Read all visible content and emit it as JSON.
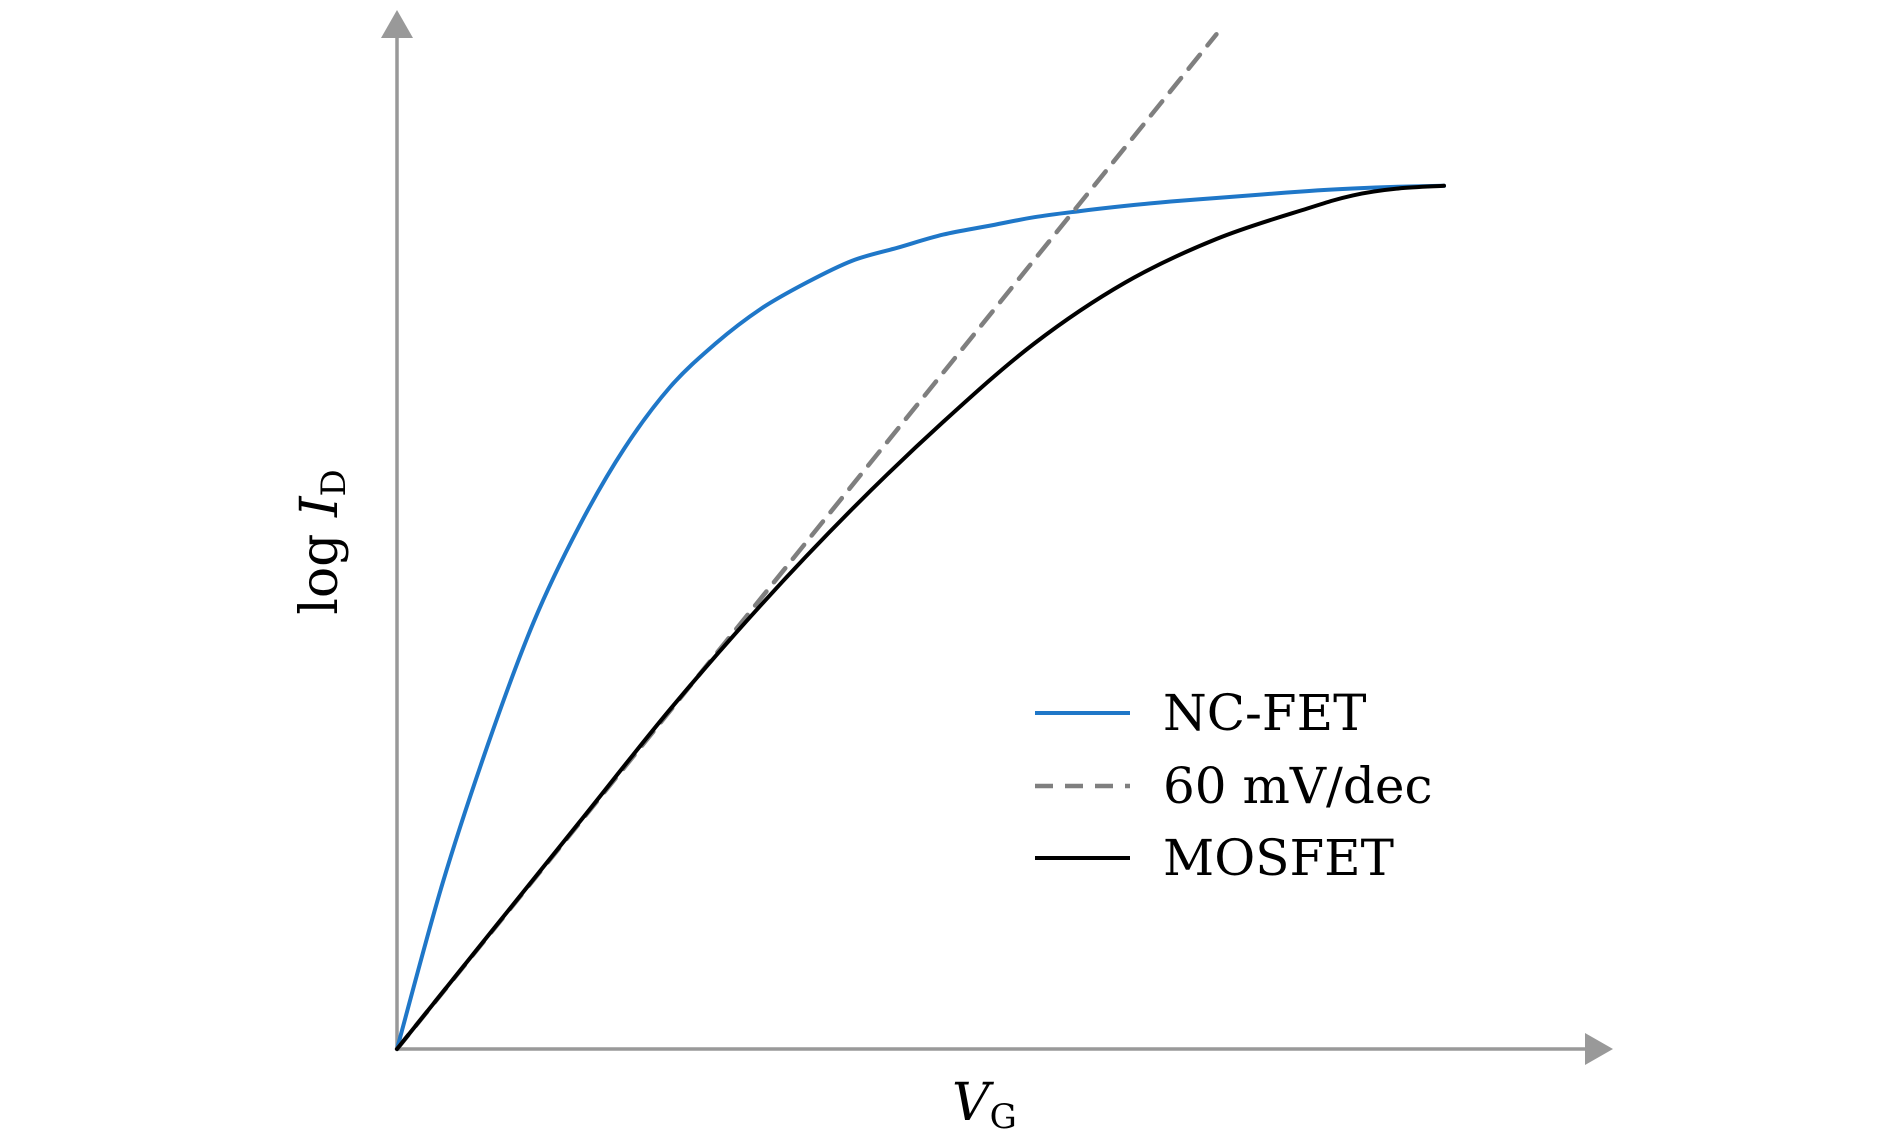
{
  "chart_data": {
    "type": "line",
    "title": "",
    "xlabel": {
      "main": "V",
      "sub": "G"
    },
    "ylabel": {
      "prefix": "log ",
      "main": "I",
      "sub": "D"
    },
    "xlim": [
      0,
      1.25
    ],
    "ylim": [
      0,
      1.0
    ],
    "grid": false,
    "legend_position": "bottom-right",
    "series": [
      {
        "name": "NC-FET",
        "color": "#1f77c8",
        "dash": "solid",
        "x": [
          0.0,
          0.05,
          0.1,
          0.15,
          0.2,
          0.25,
          0.3,
          0.35,
          0.4,
          0.45,
          0.5,
          0.55,
          0.6,
          0.65,
          0.7,
          0.75,
          0.8,
          0.85,
          0.9,
          0.95,
          1.0,
          1.05,
          1.1,
          1.15
        ],
        "y": [
          0.0,
          0.19,
          0.35,
          0.49,
          0.6,
          0.69,
          0.76,
          0.81,
          0.85,
          0.88,
          0.905,
          0.92,
          0.935,
          0.945,
          0.955,
          0.962,
          0.968,
          0.973,
          0.977,
          0.981,
          0.985,
          0.988,
          0.99,
          0.991
        ]
      },
      {
        "name": "60 mV/dec",
        "color": "#7f7f7f",
        "dash": "dashed",
        "x": [
          0.0,
          0.9
        ],
        "y": [
          0.0,
          1.165
        ]
      },
      {
        "name": "MOSFET",
        "color": "#000000",
        "dash": "solid",
        "x": [
          0.0,
          0.1,
          0.2,
          0.3,
          0.4,
          0.5,
          0.6,
          0.7,
          0.8,
          0.9,
          1.0,
          1.05,
          1.1,
          1.15
        ],
        "y": [
          0.0,
          0.13,
          0.26,
          0.39,
          0.51,
          0.62,
          0.72,
          0.81,
          0.88,
          0.93,
          0.965,
          0.98,
          0.988,
          0.991
        ]
      }
    ]
  }
}
